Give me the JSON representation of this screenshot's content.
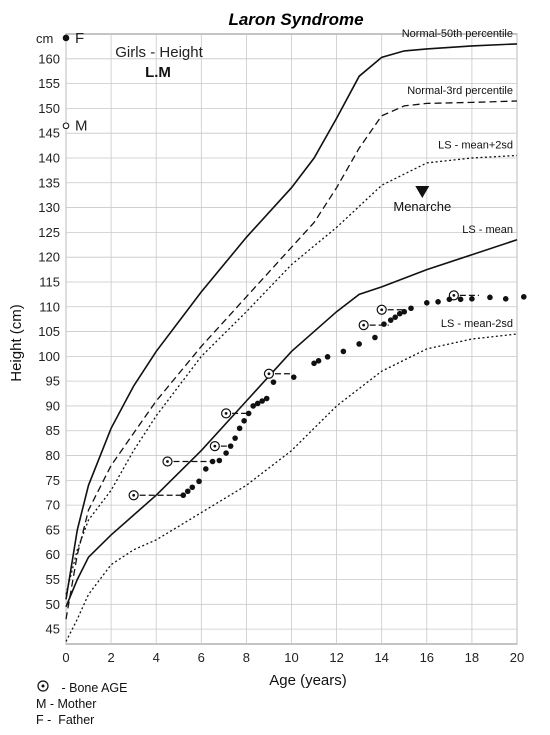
{
  "chart_data": {
    "type": "line",
    "title": "Laron Syndrome",
    "subtitle": "Girls - Height",
    "patient_id": "L.M",
    "xlabel": "Age (years)",
    "ylabel": "Height (cm)",
    "y_unit_marker": "cm",
    "xlim": [
      0,
      20
    ],
    "ylim": [
      42,
      165
    ],
    "x_ticks": [
      0,
      2,
      4,
      6,
      8,
      10,
      12,
      14,
      16,
      18,
      20
    ],
    "y_ticks": [
      45,
      50,
      55,
      60,
      65,
      70,
      75,
      80,
      85,
      90,
      95,
      100,
      105,
      110,
      115,
      120,
      125,
      130,
      135,
      140,
      145,
      150,
      155,
      160
    ],
    "grid": true,
    "series": [
      {
        "name": "Normal-50th percentile",
        "style": "solid",
        "points": [
          [
            0,
            51
          ],
          [
            0.5,
            65
          ],
          [
            1,
            74
          ],
          [
            2,
            85.5
          ],
          [
            3,
            94
          ],
          [
            4,
            101
          ],
          [
            6,
            113
          ],
          [
            8,
            124
          ],
          [
            10,
            134
          ],
          [
            11,
            140
          ],
          [
            12,
            148
          ],
          [
            13,
            156.5
          ],
          [
            14,
            160.3
          ],
          [
            15,
            161.6
          ],
          [
            16,
            162
          ],
          [
            18,
            162.6
          ],
          [
            20,
            163
          ]
        ]
      },
      {
        "name": "Normal-3rd percentile",
        "style": "dashed",
        "points": [
          [
            0,
            47
          ],
          [
            0.5,
            60
          ],
          [
            1,
            69
          ],
          [
            2,
            78
          ],
          [
            3,
            84.5
          ],
          [
            4,
            91
          ],
          [
            6,
            102
          ],
          [
            8,
            112
          ],
          [
            10,
            122
          ],
          [
            11,
            127
          ],
          [
            12,
            134
          ],
          [
            13,
            142
          ],
          [
            14,
            148.5
          ],
          [
            15,
            150.5
          ],
          [
            16,
            151
          ],
          [
            18,
            151.2
          ],
          [
            20,
            151.5
          ]
        ]
      },
      {
        "name": "LS - mean+2sd",
        "style": "dotted",
        "points": [
          [
            0,
            52
          ],
          [
            0.5,
            61
          ],
          [
            1,
            67
          ],
          [
            2,
            73
          ],
          [
            3,
            81
          ],
          [
            4,
            88
          ],
          [
            6,
            100
          ],
          [
            8,
            109
          ],
          [
            10,
            118.5
          ],
          [
            12,
            126
          ],
          [
            14,
            134.5
          ],
          [
            16,
            139
          ],
          [
            18,
            140
          ],
          [
            20,
            140.5
          ]
        ]
      },
      {
        "name": "LS - mean",
        "style": "solid",
        "points": [
          [
            0,
            49.5
          ],
          [
            0.5,
            55
          ],
          [
            1,
            59.5
          ],
          [
            2,
            64
          ],
          [
            4,
            72
          ],
          [
            6,
            81
          ],
          [
            8,
            91
          ],
          [
            10,
            101
          ],
          [
            12,
            109
          ],
          [
            13,
            112.5
          ],
          [
            14,
            114
          ],
          [
            16,
            117.5
          ],
          [
            18,
            120.5
          ],
          [
            20,
            123.5
          ]
        ]
      },
      {
        "name": "LS - mean-2sd",
        "style": "dotted",
        "points": [
          [
            0,
            42.5
          ],
          [
            0.5,
            47
          ],
          [
            1,
            52
          ],
          [
            2,
            58
          ],
          [
            3,
            61
          ],
          [
            4,
            63
          ],
          [
            6,
            68.5
          ],
          [
            8,
            74
          ],
          [
            10,
            81
          ],
          [
            12,
            90
          ],
          [
            14,
            97
          ],
          [
            16,
            101.5
          ],
          [
            18,
            103.5
          ],
          [
            20,
            104.5
          ]
        ]
      }
    ],
    "measurements": [
      [
        5.2,
        72
      ],
      [
        5.4,
        72.8
      ],
      [
        5.6,
        73.6
      ],
      [
        5.9,
        74.8
      ],
      [
        6.2,
        77.3
      ],
      [
        6.5,
        78.8
      ],
      [
        6.8,
        79
      ],
      [
        7.1,
        80.5
      ],
      [
        7.3,
        81.9
      ],
      [
        7.5,
        83.5
      ],
      [
        7.7,
        85.5
      ],
      [
        7.9,
        87
      ],
      [
        8.1,
        88.5
      ],
      [
        8.3,
        90
      ],
      [
        8.5,
        90.5
      ],
      [
        8.7,
        91
      ],
      [
        8.9,
        91.5
      ],
      [
        9.2,
        94.8
      ],
      [
        10.1,
        95.8
      ],
      [
        11,
        98.6
      ],
      [
        11.2,
        99.1
      ],
      [
        11.6,
        99.9
      ],
      [
        12.3,
        101
      ],
      [
        13,
        102.5
      ],
      [
        13.7,
        103.8
      ],
      [
        14.1,
        106.5
      ],
      [
        14.4,
        107.3
      ],
      [
        14.6,
        107.9
      ],
      [
        14.8,
        108.6
      ],
      [
        15,
        109
      ],
      [
        15.3,
        109.7
      ],
      [
        16,
        110.8
      ],
      [
        16.5,
        111
      ],
      [
        17,
        111.5
      ],
      [
        17.5,
        111.5
      ],
      [
        18,
        111.6
      ],
      [
        18.8,
        111.9
      ],
      [
        19.5,
        111.6
      ],
      [
        20.3,
        112
      ]
    ],
    "bone_age": [
      {
        "bone_age": 3,
        "chrono_age": 5.2,
        "height": 72
      },
      {
        "bone_age": 4.5,
        "chrono_age": 6.7,
        "height": 78.8
      },
      {
        "bone_age": 6.6,
        "chrono_age": 7.3,
        "height": 81.9
      },
      {
        "bone_age": 7.1,
        "chrono_age": 8.3,
        "height": 88.5
      },
      {
        "bone_age": 9,
        "chrono_age": 10.1,
        "height": 96.5
      },
      {
        "bone_age": 13.2,
        "chrono_age": 14.4,
        "height": 106.3
      },
      {
        "bone_age": 14,
        "chrono_age": 15.1,
        "height": 109.4
      },
      {
        "bone_age": 17.2,
        "chrono_age": 18.4,
        "height": 112.3
      }
    ],
    "parents": [
      {
        "label": "F",
        "height": 164.2
      },
      {
        "label": "M",
        "height": 146.5
      }
    ],
    "annotations": [
      {
        "text": "Menarche",
        "x": 15.8,
        "y": 129.5
      }
    ],
    "legend": [
      {
        "symbol": "bone-age",
        "text": " - Bone AGE"
      },
      {
        "symbol": "",
        "text": "M - Mother"
      },
      {
        "symbol": "",
        "text": "F -  Father"
      }
    ]
  }
}
